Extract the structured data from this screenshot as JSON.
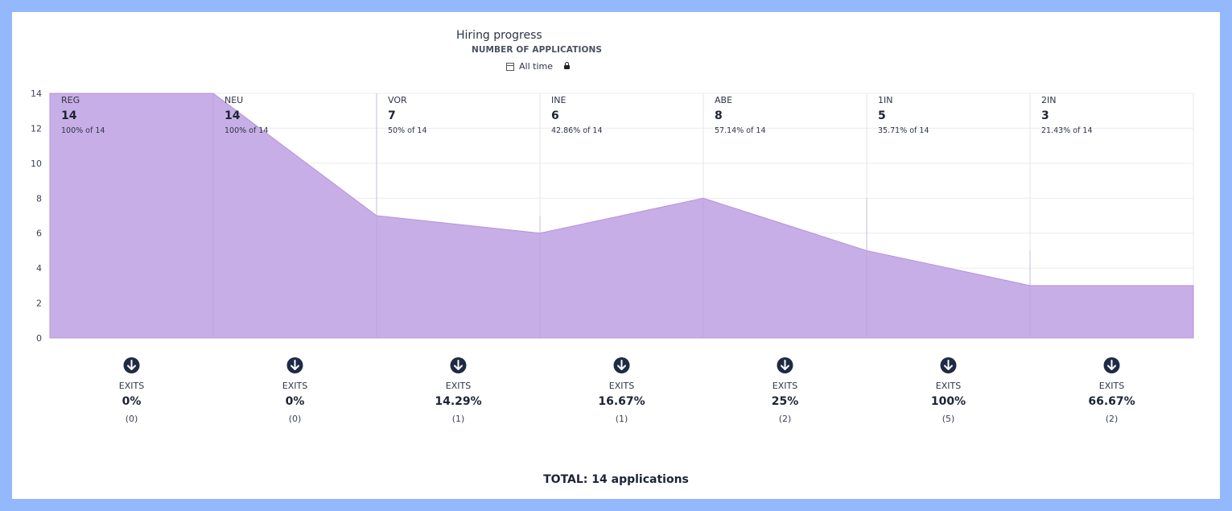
{
  "header": {
    "title": "Hiring progress",
    "subtitle": "NUMBER OF APPLICATIONS",
    "time_filter": "All time"
  },
  "total_label": "TOTAL: 14 applications",
  "exits_label": "EXITS",
  "icons": {
    "time": "calendar-icon",
    "lock": "lock-icon",
    "exit": "arrow-down-circle-icon"
  },
  "colors": {
    "area_fill": "#c8aee6",
    "area_stroke": "#b493dc",
    "exit_icon": "#1f2a44"
  },
  "chart_data": {
    "type": "area",
    "categories": [
      "REG",
      "NEU",
      "VOR",
      "INE",
      "ABE",
      "1IN",
      "2IN"
    ],
    "values": [
      14,
      14,
      7,
      6,
      8,
      5,
      3
    ],
    "value_labels": [
      "14",
      "14",
      "7",
      "6",
      "8",
      "5",
      "3"
    ],
    "percent_labels": [
      "100% of 14",
      "100% of 14",
      "50% of 14",
      "42.86% of 14",
      "57.14% of 14",
      "35.71% of 14",
      "21.43% of 14"
    ],
    "exits_percent": [
      "0%",
      "0%",
      "14.29%",
      "16.67%",
      "25%",
      "100%",
      "66.67%"
    ],
    "exits_count": [
      "(0)",
      "(0)",
      "(1)",
      "(1)",
      "(2)",
      "(5)",
      "(2)"
    ],
    "ylim": [
      0,
      14
    ],
    "yticks": [
      0,
      2,
      4,
      6,
      8,
      10,
      12,
      14
    ],
    "grid": true
  }
}
